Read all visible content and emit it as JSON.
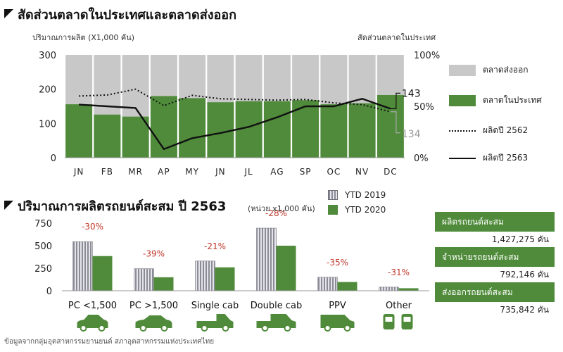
{
  "top": {
    "title": "สัดส่วนตลาดในประเทศและตลาดส่งออก",
    "left_axis_label": "ปริมาณการผลิต (X1,000 คัน)",
    "right_axis_label": "สัดส่วนตลาดในประเทศ",
    "legend": {
      "export": "ตลาดส่งออก",
      "domestic": "ตลาดในประเทศ",
      "prod2562": "ผลิตปี 2562",
      "prod2563": "ผลิตปี 2563"
    },
    "end_labels": {
      "prod2563": "143",
      "prod2562": "134"
    }
  },
  "bottom": {
    "title": "ปริมาณการผลิตรถยนต์สะสม ปี 2563",
    "unit": "(หน่วย x1,000 คัน)",
    "legend": {
      "ytd2019": "YTD 2019",
      "ytd2020": "YTD 2020"
    }
  },
  "stats": [
    {
      "label": "ผลิตรถยนต์สะสม",
      "value": "1,427,275 คัน"
    },
    {
      "label": "จำหน่ายรถยนต์สะสม",
      "value": "792,146 คัน"
    },
    {
      "label": "ส่งออกรถยนต์สะสม",
      "value": "735,842 คัน"
    }
  ],
  "footnote": "ข้อมูลจากกลุ่มอุตสาหกรรมยานยนต์ สภาอุตสาหกรรมแห่งประเทศไทย",
  "colors": {
    "green": "#4f8b3a",
    "gray": "#c8c8c8",
    "ytd2019": "#8c8c96",
    "red": "#c0392b",
    "car_green": "#4f8b3a"
  },
  "chart_data": [
    {
      "type": "bar",
      "stacked": true,
      "categories": [
        "JN",
        "FB",
        "MR",
        "AP",
        "MY",
        "JN",
        "JL",
        "AG",
        "SP",
        "OC",
        "NV",
        "DC"
      ],
      "ylim": [
        0,
        300
      ],
      "yticks": [
        "0",
        "100",
        "200",
        "300"
      ],
      "y2lim": [
        0,
        100
      ],
      "y2ticks": [
        "0%",
        "50%",
        "100%"
      ],
      "series": [
        {
          "name": "ตลาดในประเทศ",
          "kind": "bar",
          "axis": "right",
          "values": [
            52,
            42,
            40,
            60,
            58,
            54,
            55,
            55,
            56,
            52,
            53,
            61
          ]
        },
        {
          "name": "ตลาดส่งออก",
          "kind": "bar",
          "axis": "right",
          "values": [
            48,
            58,
            60,
            40,
            42,
            46,
            45,
            45,
            44,
            48,
            47,
            39
          ]
        },
        {
          "name": "ผลิตปี 2562",
          "kind": "line",
          "style": "dotted",
          "axis": "left",
          "values": [
            180,
            183,
            200,
            152,
            182,
            172,
            170,
            168,
            170,
            160,
            155,
            134
          ]
        },
        {
          "name": "ผลิตปี 2563",
          "kind": "line",
          "style": "solid",
          "axis": "left",
          "values": [
            155,
            150,
            145,
            25,
            57,
            72,
            90,
            118,
            150,
            150,
            172,
            143
          ]
        }
      ]
    },
    {
      "type": "bar",
      "categories": [
        "PC <1,500",
        "PC >1,500",
        "Single cab",
        "Double cab",
        "PPV",
        "Other"
      ],
      "ylim": [
        0,
        750
      ],
      "yticks": [
        "0",
        "250",
        "500",
        "750"
      ],
      "series": [
        {
          "name": "YTD 2019",
          "values": [
            545,
            245,
            330,
            695,
            150,
            40
          ]
        },
        {
          "name": "YTD 2020",
          "values": [
            385,
            150,
            260,
            500,
            97,
            28
          ]
        }
      ],
      "annotations": [
        "-30%",
        "-39%",
        "-21%",
        "-28%",
        "-35%",
        "-31%"
      ]
    }
  ]
}
